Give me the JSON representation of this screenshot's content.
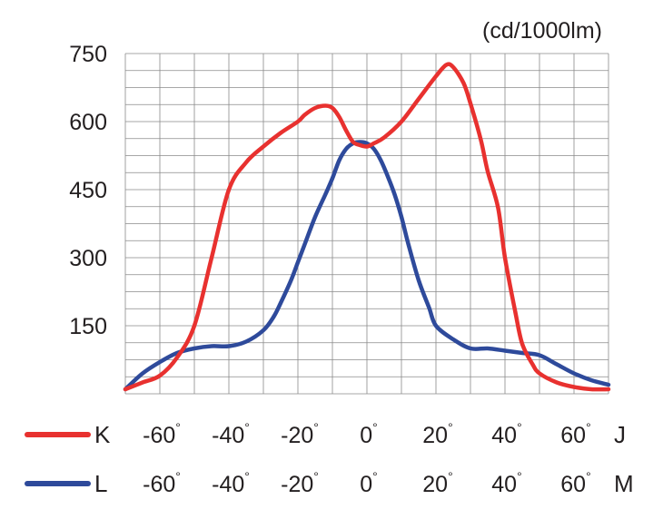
{
  "chart_data": {
    "type": "line",
    "unit_label": "(cd/1000lm)",
    "x_range": [
      -70,
      70
    ],
    "ylim": [
      0,
      750
    ],
    "y_ticks": [
      150,
      300,
      450,
      600,
      750
    ],
    "y_tick_labels": [
      "150",
      "300",
      "450",
      "600",
      "750"
    ],
    "grid": true,
    "series": [
      {
        "name": "K",
        "axis_end_label": "J",
        "x_tick_labels": [
          "-60°",
          "-40°",
          "-20°",
          "0°",
          "20°",
          "40°",
          "60°"
        ],
        "color": "#e8312f",
        "x": [
          -70,
          -65,
          -60,
          -55,
          -50,
          -45,
          -40,
          -35,
          -30,
          -25,
          -20,
          -18,
          -15,
          -12,
          -10,
          -8,
          -6,
          -4,
          -2,
          0,
          2,
          5,
          10,
          15,
          20,
          23,
          25,
          28,
          30,
          33,
          35,
          38,
          40,
          43,
          45,
          48,
          50,
          55,
          60,
          65,
          70
        ],
        "values": [
          10,
          25,
          40,
          80,
          150,
          300,
          450,
          510,
          545,
          575,
          600,
          615,
          630,
          635,
          630,
          610,
          580,
          555,
          548,
          545,
          552,
          565,
          600,
          650,
          700,
          725,
          720,
          685,
          640,
          560,
          490,
          410,
          300,
          180,
          110,
          65,
          45,
          25,
          15,
          10,
          10
        ]
      },
      {
        "name": "L",
        "axis_end_label": "M",
        "x_tick_labels": [
          "-60°",
          "-40°",
          "-20°",
          "0°",
          "20°",
          "40°",
          "60°"
        ],
        "color": "#2e4a9b",
        "x": [
          -70,
          -65,
          -60,
          -55,
          -50,
          -45,
          -40,
          -35,
          -30,
          -27,
          -25,
          -22,
          -20,
          -18,
          -15,
          -12,
          -10,
          -8,
          -6,
          -4,
          -2,
          0,
          2,
          4,
          6,
          8,
          10,
          12,
          15,
          18,
          20,
          25,
          30,
          35,
          40,
          45,
          50,
          55,
          60,
          65,
          70
        ],
        "values": [
          10,
          45,
          70,
          90,
          100,
          105,
          105,
          115,
          140,
          170,
          200,
          250,
          290,
          330,
          390,
          440,
          475,
          515,
          540,
          552,
          555,
          552,
          540,
          515,
          480,
          440,
          390,
          330,
          250,
          190,
          150,
          120,
          100,
          100,
          95,
          90,
          85,
          65,
          45,
          30,
          20
        ]
      }
    ]
  }
}
